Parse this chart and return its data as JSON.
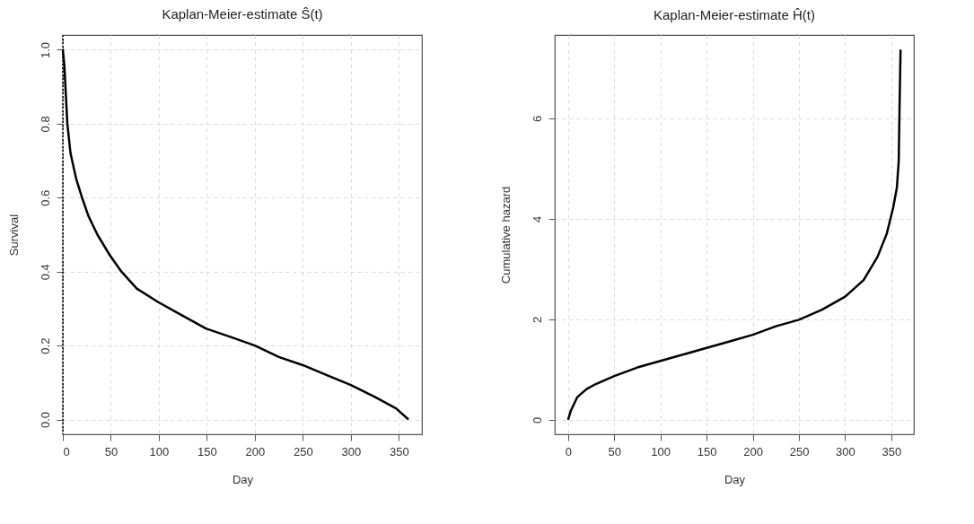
{
  "chart_data": [
    {
      "type": "line",
      "title": "Kaplan-Meier-estimate Ŝ(t)",
      "xlabel": "Day",
      "ylabel": "Survival",
      "xlim": [
        0,
        374
      ],
      "ylim": [
        -0.04,
        1.04
      ],
      "xticks": [
        0,
        50,
        100,
        150,
        200,
        250,
        300,
        350
      ],
      "yticks": [
        {
          "value": 0,
          "label": "0.0"
        },
        0.2,
        0.4,
        0.6,
        0.8,
        {
          "value": 1,
          "label": "1.0"
        }
      ],
      "grid": true,
      "marker": "none",
      "line_style": "solid",
      "ref_lines": [
        {
          "axis": "x",
          "value": 0,
          "label": null,
          "color": "#000000",
          "line_style": "dotted"
        }
      ],
      "series": [
        {
          "color": "#000000",
          "x": [
            0,
            1.6,
            3,
            4.7,
            8,
            14,
            20.4,
            26.7,
            36,
            49,
            61,
            77,
            99,
            121,
            149,
            175,
            200,
            225,
            250,
            275,
            300,
            325,
            347,
            360
          ],
          "values": [
            1.0,
            0.957,
            0.885,
            0.8,
            0.72,
            0.65,
            0.597,
            0.55,
            0.5,
            0.444,
            0.4,
            0.354,
            0.318,
            0.286,
            0.246,
            0.223,
            0.2,
            0.169,
            0.147,
            0.12,
            0.093,
            0.061,
            0.03,
            0.0
          ]
        }
      ]
    },
    {
      "type": "line",
      "title": "Kaplan-Meier-estimate Ĥ(t)",
      "xlabel": "Day",
      "ylabel": "Cumulative hazard",
      "xlim": [
        -14.4,
        374.4
      ],
      "ylim": [
        -0.29,
        7.66
      ],
      "xticks": [
        0,
        50,
        100,
        150,
        200,
        250,
        300,
        350
      ],
      "yticks": [
        0,
        2,
        4,
        6
      ],
      "grid": true,
      "marker": "none",
      "line_style": "solid",
      "series": [
        {
          "color": "#000000",
          "x": [
            0,
            3,
            10,
            20,
            30,
            50,
            75,
            100,
            125,
            150,
            175,
            200,
            225,
            250,
            275,
            300,
            320,
            335,
            345,
            352,
            356,
            358,
            359,
            360
          ],
          "values": [
            0,
            0.18,
            0.45,
            0.61,
            0.71,
            0.87,
            1.04,
            1.17,
            1.3,
            1.43,
            1.56,
            1.69,
            1.86,
            1.99,
            2.19,
            2.45,
            2.78,
            3.24,
            3.7,
            4.22,
            4.62,
            5.14,
            6.32,
            7.37
          ]
        }
      ]
    }
  ]
}
